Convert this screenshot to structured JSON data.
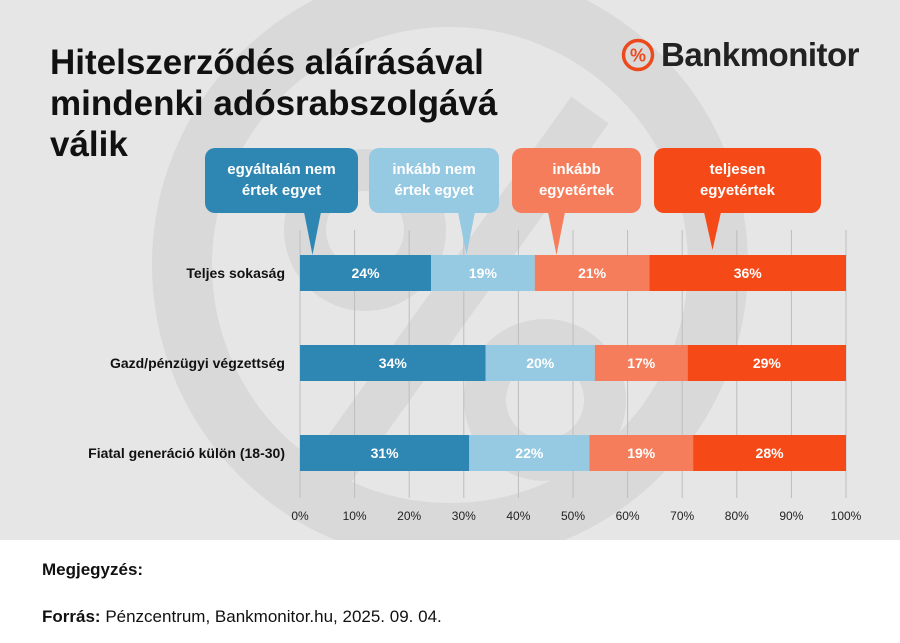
{
  "title_lines": [
    "Hitelszerződés aláírásával",
    "mindenki adósrabszolgává",
    "válik"
  ],
  "brand": {
    "name": "Bankmonitor",
    "icon": "percent-icon",
    "color": "#ec4a1c"
  },
  "colors": {
    "panel": "#e6e6e6",
    "watermark": "#d9d9d9"
  },
  "footer": {
    "note_label": "Megjegyzés:",
    "source_label": "Forrás:",
    "source_text": "Pénzcentrum, Bankmonitor.hu, 2025. 09. 04."
  },
  "chart_data": {
    "type": "bar",
    "stacked": true,
    "orientation": "horizontal",
    "categories": [
      "Teljes sokaság",
      "Gazd/pénzügyi végzettség",
      "Fiatal generáció külön (18-30)"
    ],
    "series": [
      {
        "name": "egyáltalán nem értek egyet",
        "name_lines": [
          "egyáltalán nem",
          "értek egyet"
        ],
        "color": "#2e87b3",
        "values": [
          24,
          34,
          31
        ]
      },
      {
        "name": "inkább nem értek egyet",
        "name_lines": [
          "inkább nem",
          "értek egyet"
        ],
        "color": "#96c9e2",
        "values": [
          19,
          20,
          22
        ]
      },
      {
        "name": "inkább egyetértek",
        "name_lines": [
          "inkább",
          "egyetértek"
        ],
        "color": "#f57d5b",
        "values": [
          21,
          17,
          19
        ]
      },
      {
        "name": "teljesen egyetértek",
        "name_lines": [
          "teljesen",
          "egyetértek"
        ],
        "color": "#f54a18",
        "values": [
          36,
          29,
          28
        ]
      }
    ],
    "xlim": [
      0,
      100
    ],
    "xticks": [
      "0%",
      "10%",
      "20%",
      "30%",
      "40%",
      "50%",
      "60%",
      "70%",
      "80%",
      "90%",
      "100%"
    ],
    "value_suffix": "%",
    "grid": true,
    "legend": "callouts above first bar"
  }
}
